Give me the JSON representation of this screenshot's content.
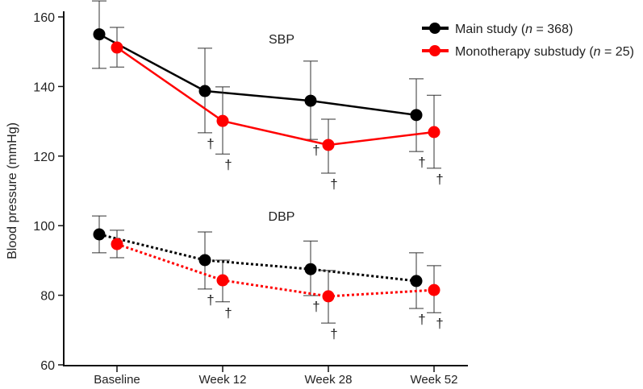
{
  "chart_data": {
    "type": "line",
    "ylabel": "Blood pressure (mmHg)",
    "xlabel": "",
    "ylim": [
      60,
      160
    ],
    "yticks": [
      "60",
      "80",
      "100",
      "120",
      "140",
      "160"
    ],
    "categories": [
      "Baseline",
      "Week 12",
      "Week 28",
      "Week 52"
    ],
    "panel_labels": {
      "sbp": "SBP",
      "dbp": "DBP"
    },
    "legend": {
      "placement": "top-right",
      "entries": [
        {
          "prefix": "Main study (",
          "n_label": "n",
          "suffix": " = 368)",
          "color": "#000000"
        },
        {
          "prefix": "Monotherapy substudy (",
          "n_label": "n",
          "suffix": " = 25)",
          "color": "#ff0000"
        }
      ]
    },
    "significance_marker": "†",
    "series": [
      {
        "name": "Main study SBP",
        "group": "main",
        "measure": "SBP",
        "color": "#000000",
        "dashed": false,
        "values": [
          155,
          138.7,
          135.9,
          131.8
        ],
        "upper": [
          164.6,
          151,
          147.3,
          142.2
        ],
        "lower": [
          145.2,
          126.7,
          124.8,
          121.3
        ],
        "significant": [
          false,
          true,
          true,
          true
        ]
      },
      {
        "name": "Monotherapy substudy SBP",
        "group": "mono",
        "measure": "SBP",
        "color": "#ff0000",
        "dashed": false,
        "values": [
          151.2,
          130.1,
          123.2,
          126.9
        ],
        "upper": [
          157,
          139.9,
          130.6,
          137.5
        ],
        "lower": [
          145.6,
          120.6,
          115.1,
          116.5
        ],
        "significant": [
          false,
          true,
          true,
          true
        ]
      },
      {
        "name": "Main study DBP",
        "group": "main",
        "measure": "DBP",
        "color": "#000000",
        "dashed": true,
        "values": [
          97.5,
          90.1,
          87.5,
          84.1
        ],
        "upper": [
          102.8,
          98.2,
          95.6,
          92.2
        ],
        "lower": [
          92.2,
          81.8,
          79.9,
          76.2
        ],
        "significant": [
          false,
          true,
          true,
          true
        ]
      },
      {
        "name": "Monotherapy substudy DBP",
        "group": "mono",
        "measure": "DBP",
        "color": "#ff0000",
        "dashed": true,
        "values": [
          94.7,
          84.3,
          79.7,
          81.5
        ],
        "upper": [
          98.7,
          90.1,
          87.1,
          88.5
        ],
        "lower": [
          90.8,
          78.1,
          72.0,
          75.0
        ],
        "significant": [
          false,
          true,
          true,
          true
        ]
      }
    ]
  }
}
